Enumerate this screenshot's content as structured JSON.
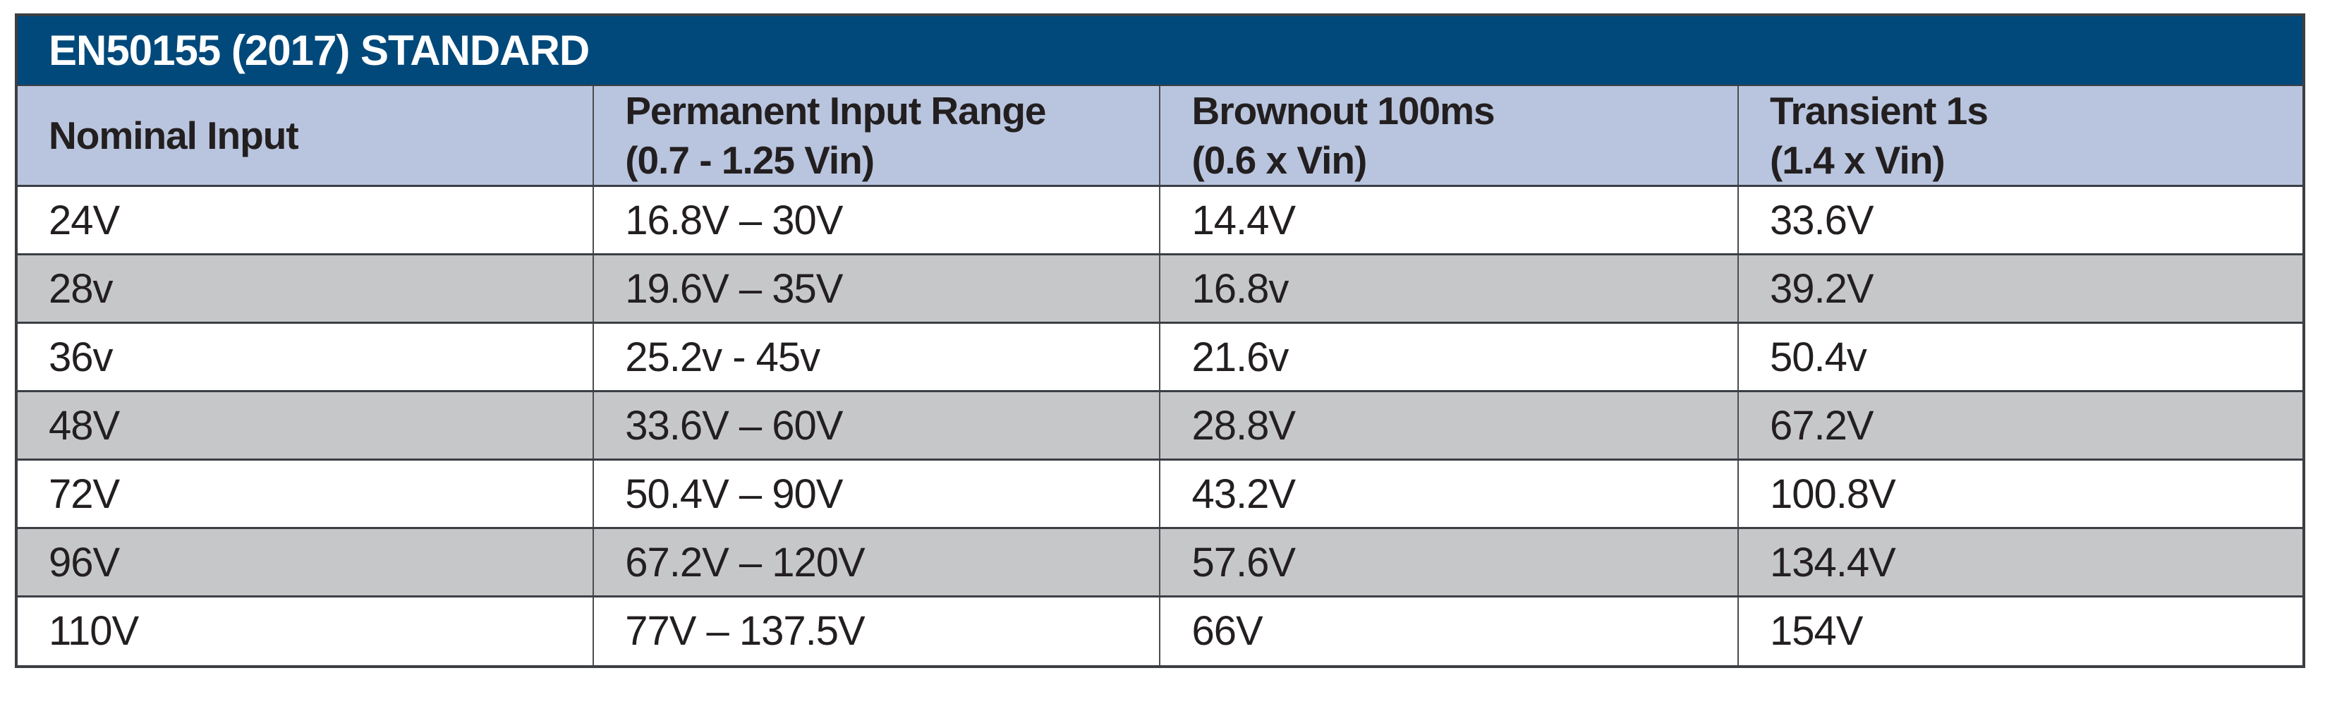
{
  "title_bar": {
    "title": "EN50155 (2017) STANDARD"
  },
  "table": {
    "columns": [
      {
        "label": "Nominal Input",
        "sub": ""
      },
      {
        "label": "Permanent Input Range",
        "sub": "(0.7 - 1.25 Vin)"
      },
      {
        "label": "Brownout 100ms",
        "sub": "(0.6 x Vin)"
      },
      {
        "label": "Transient 1s",
        "sub": "(1.4 x Vin)"
      }
    ],
    "rows": [
      [
        "24V",
        "16.8V – 30V",
        "14.4V",
        "33.6V"
      ],
      [
        "28v",
        "19.6V – 35V",
        "16.8v",
        "39.2V"
      ],
      [
        "36v",
        "25.2v - 45v",
        "21.6v",
        "50.4v"
      ],
      [
        "48V",
        "33.6V – 60V",
        "28.8V",
        "67.2V"
      ],
      [
        "72V",
        "50.4V – 90V",
        "43.2V",
        "100.8V"
      ],
      [
        "96V",
        "67.2V – 120V",
        "57.6V",
        "134.4V"
      ],
      [
        "110V",
        "77V – 137.5V",
        "66V",
        "154V"
      ]
    ]
  },
  "colors": {
    "title_bg": "#02497b",
    "title_text": "#ffffff",
    "header_bg": "#b9c5de",
    "row_bg": "#ffffff",
    "row_alt_bg": "#c6c7c9",
    "border": "#3b3e43",
    "divider": "#4a4d52",
    "text": "#231f20"
  }
}
